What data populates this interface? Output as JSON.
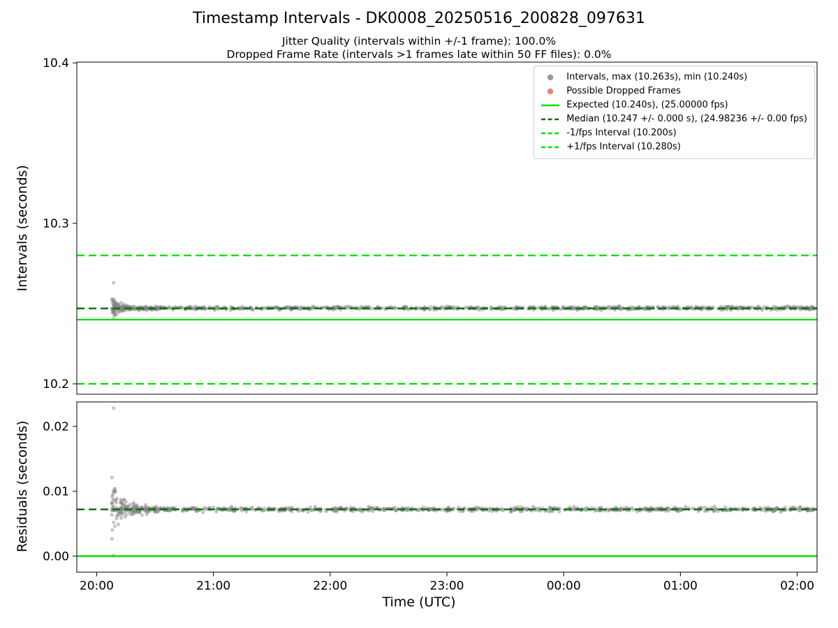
{
  "figure": {
    "title": "Timestamp Intervals - DK0008_20250516_200828_097631",
    "subtitle1": "Jitter Quality (intervals within +/-1 frame): 100.0%",
    "subtitle2": "Dropped Frame Rate (intervals >1 frames late within 50 FF files): 0.0%"
  },
  "x_axis": {
    "label": "Time (UTC)",
    "lim": [
      -0.17,
      6.17
    ],
    "ticks": [
      {
        "v": 0,
        "label": "20:00"
      },
      {
        "v": 1,
        "label": "21:00"
      },
      {
        "v": 2,
        "label": "22:00"
      },
      {
        "v": 3,
        "label": "23:00"
      },
      {
        "v": 4,
        "label": "00:00"
      },
      {
        "v": 5,
        "label": "01:00"
      },
      {
        "v": 6,
        "label": "02:00"
      }
    ]
  },
  "colors": {
    "scatter": "#808080",
    "scatter_legend": "#9a9a9a",
    "dropped": "#f08080",
    "expected": "#00e100",
    "median": "#0e6f0e",
    "fps_band": "#00e100",
    "frame": "#000000"
  },
  "legend": {
    "items": [
      {
        "label": "Intervals, max (10.263s), min (10.240s)",
        "marker": "dot",
        "color": "#9a9a9a"
      },
      {
        "label": "Possible Dropped Frames",
        "marker": "dot",
        "color": "#f08080"
      },
      {
        "label": "Expected (10.240s), (25.00000 fps)",
        "marker": "line-solid",
        "color": "#00e100"
      },
      {
        "label": "Median (10.247 +/- 0.000 s), (24.98236 +/- 0.00 fps)",
        "marker": "line-dashed",
        "color": "#0e6f0e"
      },
      {
        "label": "-1/fps Interval (10.200s)",
        "marker": "line-dashed",
        "color": "#00e100"
      },
      {
        "label": "+1/fps Interval (10.280s)",
        "marker": "line-dashed",
        "color": "#00e100"
      }
    ]
  },
  "chart_data": [
    {
      "type": "scatter",
      "name": "intervals",
      "ylabel": "Intervals (seconds)",
      "ylim": [
        10.1935,
        10.4005
      ],
      "yticks": [
        {
          "v": 10.2,
          "label": "10.2"
        },
        {
          "v": 10.3,
          "label": "10.3"
        },
        {
          "v": 10.4,
          "label": "10.4"
        }
      ],
      "stats": {
        "expected_s": 10.24,
        "expected_fps": 25.0,
        "median_s": 10.247,
        "median_fps": 24.98236,
        "max_s": 10.263,
        "min_s": 10.24,
        "jitter_quality_pct": 100.0,
        "dropped_frame_rate_pct": 0.0
      },
      "hlines": [
        {
          "name": "minus-1fps-line",
          "y": 10.2,
          "style": "dashed",
          "color": "#00e100"
        },
        {
          "name": "plus-1fps-line",
          "y": 10.28,
          "style": "dashed",
          "color": "#00e100"
        },
        {
          "name": "expected-line",
          "y": 10.24,
          "style": "solid",
          "color": "#00e100"
        },
        {
          "name": "median-line",
          "y": 10.247,
          "style": "dashed",
          "color": "#0e6f0e"
        }
      ],
      "scatter": {
        "band": {
          "y": 10.2472,
          "sd": 0.0005,
          "x_start": 0.14,
          "x_end": 6.15,
          "n": 750
        },
        "cluster": {
          "y": 10.2472,
          "x_start": 0.13,
          "x_end": 0.55,
          "n": 130,
          "spread": 0.0032,
          "decay": 0.07
        },
        "outliers": [
          [
            0.145,
            10.263
          ],
          [
            0.145,
            10.2405
          ],
          [
            0.15,
            10.2525
          ],
          [
            0.165,
            10.2508
          ],
          [
            0.155,
            10.2445
          ],
          [
            0.18,
            10.2495
          ]
        ]
      }
    },
    {
      "type": "scatter",
      "name": "residuals",
      "ylabel": "Residuals (seconds)",
      "ylim": [
        -0.00247,
        0.02376
      ],
      "yticks": [
        {
          "v": 0.0,
          "label": "0.00"
        },
        {
          "v": 0.01,
          "label": "0.01"
        },
        {
          "v": 0.02,
          "label": "0.02"
        }
      ],
      "hlines": [
        {
          "name": "residual-zero-line",
          "y": 0.0,
          "style": "solid",
          "color": "#00e100"
        },
        {
          "name": "residual-median-line",
          "y": 0.0072,
          "style": "dashed",
          "color": "#0e6f0e"
        }
      ],
      "scatter": {
        "band": {
          "y": 0.0072,
          "sd": 0.00016,
          "x_start": 0.14,
          "x_end": 6.15,
          "n": 750
        },
        "cluster": {
          "y": 0.0072,
          "x_start": 0.13,
          "x_end": 0.65,
          "n": 150,
          "spread": 0.0016,
          "decay": 0.11
        },
        "outliers": [
          [
            0.145,
            0.0228
          ],
          [
            0.145,
            0.0001
          ],
          [
            0.15,
            0.0103
          ],
          [
            0.16,
            0.0099
          ],
          [
            0.145,
            0.0052
          ],
          [
            0.17,
            0.0058
          ],
          [
            0.185,
            0.0049
          ],
          [
            0.155,
            0.0046
          ]
        ]
      }
    }
  ]
}
